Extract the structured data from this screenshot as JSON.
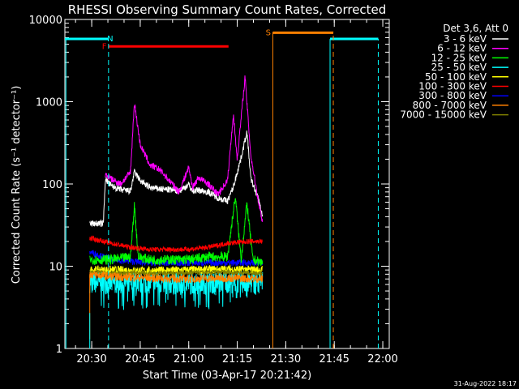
{
  "chart_data": {
    "type": "line",
    "title": "RHESSI Observing Summary Count Rates, Corrected",
    "xlabel": "Start Time (03-Apr-17 20:21:42)",
    "ylabel": "Corrected Count Rate (s⁻¹ detector⁻¹)",
    "yscale": "log",
    "xlim": [
      20.3617,
      22.0333
    ],
    "ylim": [
      1,
      10000
    ],
    "xticks": [
      {
        "value": 20.5,
        "label": "20:30"
      },
      {
        "value": 20.75,
        "label": "20:45"
      },
      {
        "value": 21.0,
        "label": "21:00"
      },
      {
        "value": 21.25,
        "label": "21:15"
      },
      {
        "value": 21.5,
        "label": "21:30"
      },
      {
        "value": 21.75,
        "label": "21:45"
      },
      {
        "value": 22.0,
        "label": "22:00"
      }
    ],
    "yticks": [
      {
        "value": 1,
        "label": "1"
      },
      {
        "value": 10,
        "label": "10"
      },
      {
        "value": 100,
        "label": "100"
      },
      {
        "value": 1000,
        "label": "1000"
      },
      {
        "value": 10000,
        "label": "10000"
      }
    ],
    "legend_header": "Det 3,6, Att 0",
    "legend_position": "right",
    "timestamp": "31-Aug-2022 18:17",
    "series": [
      {
        "name": "3 - 6 keV",
        "color": "#ffffff",
        "noise": 0.04,
        "x": [
          20.49,
          20.56,
          20.57,
          20.6,
          20.65,
          20.7,
          20.72,
          20.75,
          20.8,
          20.85,
          20.9,
          20.95,
          21.0,
          21.02,
          21.05,
          21.1,
          21.15,
          21.2,
          21.23,
          21.27,
          21.3,
          21.32,
          21.36,
          21.38
        ],
        "y": [
          33,
          33,
          115,
          95,
          85,
          82,
          140,
          110,
          90,
          87,
          85,
          82,
          98,
          82,
          84,
          80,
          68,
          62,
          92,
          210,
          430,
          115,
          65,
          40
        ]
      },
      {
        "name": "6 - 12 keV",
        "color": "#ff00ff",
        "noise": 0.04,
        "x": [
          20.57,
          20.6,
          20.65,
          20.7,
          20.72,
          20.75,
          20.8,
          20.85,
          20.9,
          20.95,
          21.0,
          21.02,
          21.05,
          21.1,
          21.15,
          21.2,
          21.23,
          21.25,
          21.29,
          21.32,
          21.36,
          21.38
        ],
        "y": [
          130,
          115,
          100,
          140,
          980,
          300,
          170,
          150,
          110,
          80,
          160,
          90,
          120,
          100,
          75,
          110,
          700,
          200,
          2000,
          220,
          60,
          35
        ]
      },
      {
        "name": "12 - 25 keV",
        "color": "#00ff00",
        "noise": 0.06,
        "x": [
          20.49,
          20.6,
          20.7,
          20.72,
          20.74,
          20.8,
          20.9,
          21.0,
          21.1,
          21.2,
          21.24,
          21.27,
          21.3,
          21.33,
          21.38
        ],
        "y": [
          12,
          12,
          13,
          55,
          13,
          12,
          12,
          12,
          13,
          13,
          70,
          12,
          58,
          12,
          11
        ]
      },
      {
        "name": "25 - 50 keV",
        "color": "#00ffff",
        "noise": 0.14,
        "x": [
          20.49,
          20.6,
          20.8,
          21.0,
          21.2,
          21.38
        ],
        "y": [
          6.5,
          6.2,
          6.3,
          6.2,
          6.5,
          6.3
        ]
      },
      {
        "name": "50 - 100 keV",
        "color": "#ffff00",
        "noise": 0.05,
        "x": [
          20.49,
          20.6,
          20.8,
          21.0,
          21.2,
          21.38
        ],
        "y": [
          9,
          9,
          8.8,
          9,
          9.2,
          9
        ]
      },
      {
        "name": "100 - 300 keV",
        "color": "#ff0000",
        "noise": 0.03,
        "x": [
          20.49,
          20.6,
          20.7,
          20.8,
          20.9,
          21.0,
          21.1,
          21.2,
          21.3,
          21.38
        ],
        "y": [
          22,
          19,
          17,
          16,
          16,
          16,
          17,
          19,
          20,
          20
        ]
      },
      {
        "name": "300 - 800 keV",
        "color": "#0000ff",
        "noise": 0.04,
        "x": [
          20.49,
          20.6,
          20.8,
          21.0,
          21.2,
          21.38
        ],
        "y": [
          15,
          12,
          11,
          11,
          11,
          11
        ]
      },
      {
        "name": "800 - 7000 keV",
        "color": "#ff8000",
        "noise": 0.05,
        "x": [
          20.49,
          20.6,
          20.8,
          21.0,
          21.2,
          21.38
        ],
        "y": [
          8,
          7.5,
          7.2,
          7.0,
          7.2,
          7.0
        ]
      },
      {
        "name": "7000 - 15000 keV",
        "color": "#808000",
        "noise": 0.03,
        "x": [
          20.49,
          20.6,
          20.8,
          21.0,
          21.2,
          21.38
        ],
        "y": [
          8.5,
          8.3,
          8.2,
          8.3,
          8.4,
          8.3
        ]
      }
    ],
    "flags": [
      {
        "label": "N",
        "name": "night",
        "color": "#00ffff",
        "level": 5800,
        "ranges": [
          [
            20.3617,
            20.5867
          ],
          [
            21.7283,
            21.9767
          ]
        ],
        "label_at": 20.595
      },
      {
        "label": "F",
        "name": "flare",
        "color": "#ff0000",
        "level": 4700,
        "ranges": [
          [
            20.5867,
            21.205
          ]
        ],
        "label_at": 20.565
      },
      {
        "label": "S",
        "name": "saa",
        "color": "#ff8000",
        "level": 6900,
        "ranges": [
          [
            21.4333,
            21.745
          ]
        ],
        "label_at": 21.41
      }
    ],
    "markers": [
      {
        "x": 20.367,
        "color": "#00ffff",
        "style": "solid",
        "from": 1,
        "to": 5800
      },
      {
        "x": 20.5867,
        "color": "#00ffff",
        "style": "dashed",
        "from": 1,
        "to": 5800
      },
      {
        "x": 21.4333,
        "color": "#ff8000",
        "style": "solid",
        "from": 1,
        "to": 7000
      },
      {
        "x": 21.7283,
        "color": "#00ffff",
        "style": "solid",
        "from": 1,
        "to": 5800
      },
      {
        "x": 21.745,
        "color": "#ff8000",
        "style": "dashed",
        "from": 1,
        "to": 7000
      },
      {
        "x": 21.9767,
        "color": "#00ffff",
        "style": "dashed",
        "from": 1,
        "to": 5800
      },
      {
        "x": 20.49,
        "color": "#ff8000",
        "style": "solid",
        "from": 1.3,
        "to": 8
      },
      {
        "x": 20.49,
        "color": "#00ffff",
        "style": "solid",
        "from": 1,
        "to": 2.7
      }
    ]
  }
}
